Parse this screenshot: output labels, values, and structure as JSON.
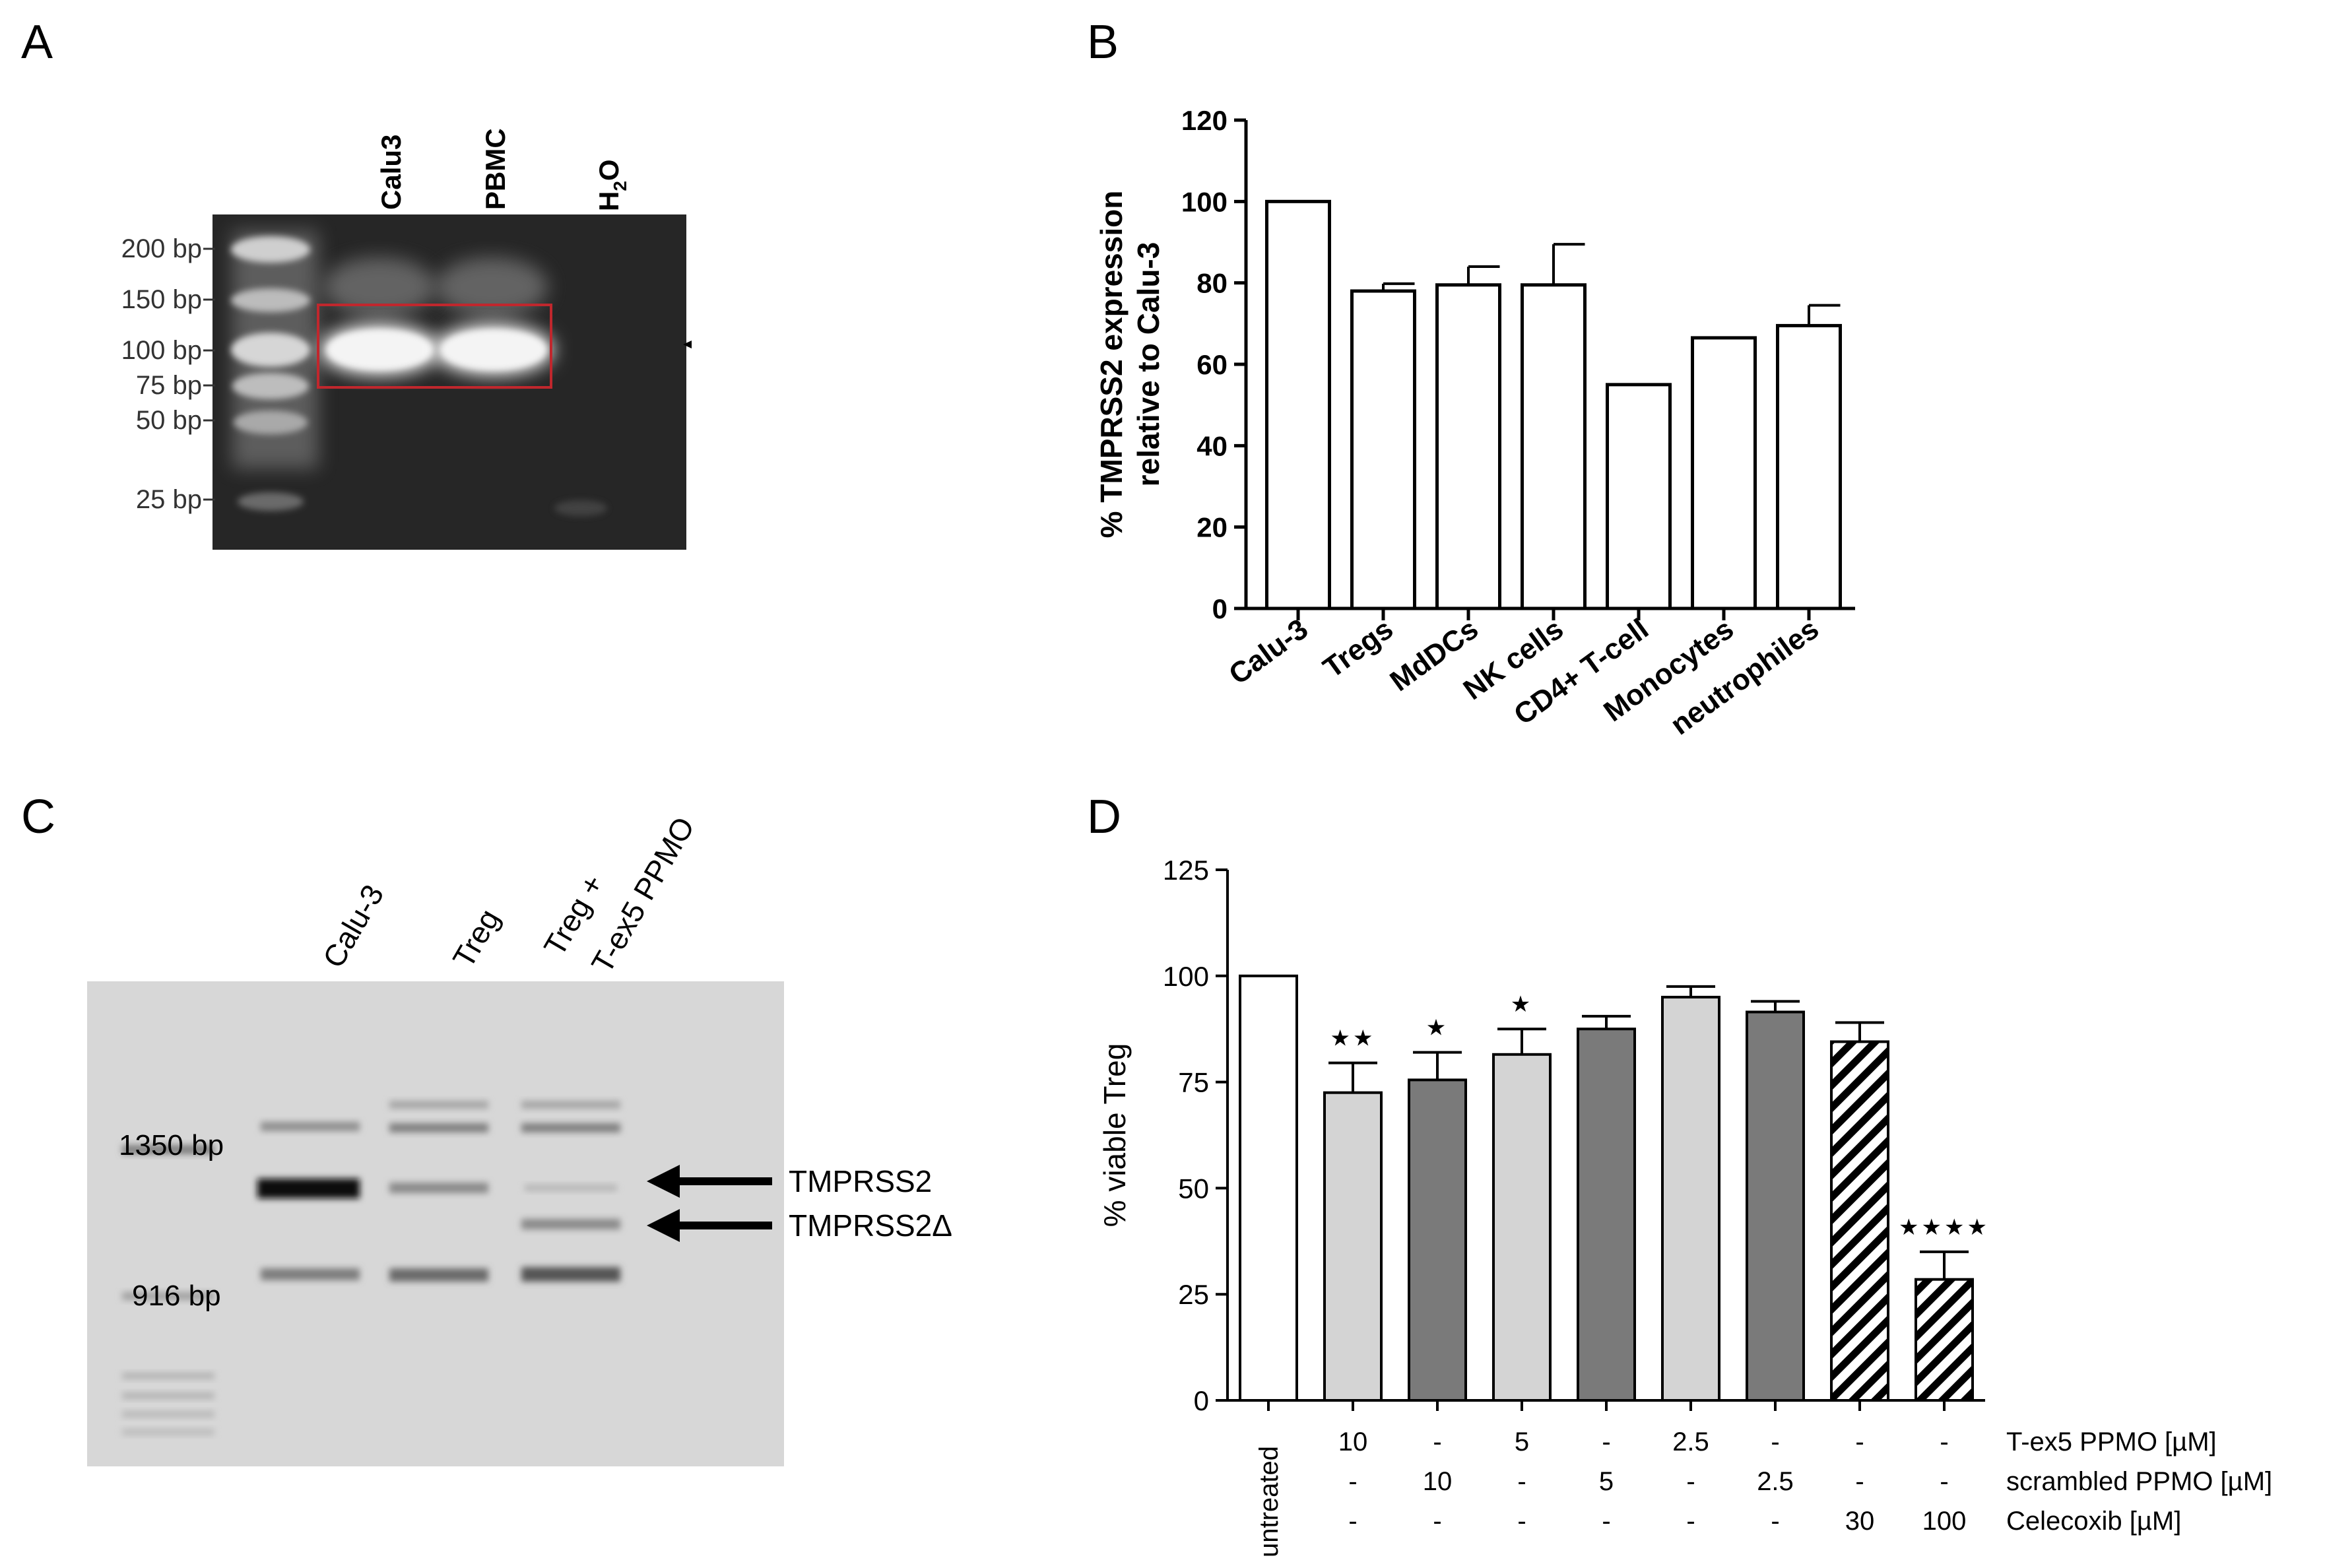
{
  "panels": {
    "A": {
      "letter": "A",
      "lanes": [
        "Calu3",
        "PBMC",
        "H",
        "2",
        "O"
      ],
      "ladder": [
        "200 bp",
        "150 bp",
        "100 bp",
        "75 bp",
        "50 bp",
        "25 bp"
      ]
    },
    "C": {
      "letter": "C",
      "lanes": [
        "Calu-3",
        "Treg",
        "Treg +",
        "T-ex5 PPMO"
      ],
      "ladder": [
        "1350 bp",
        "916 bp"
      ],
      "arrows": [
        "TMPRSS2",
        "TMPRSS2Δ"
      ]
    }
  },
  "chart_data": [
    {
      "panel": "B",
      "type": "bar",
      "title": "",
      "ylabel_line1": "% TMPRSS2 expression",
      "ylabel_line2": "relative to Calu-3",
      "ylim": [
        0,
        120
      ],
      "yticks": [
        0,
        20,
        40,
        60,
        80,
        100,
        120
      ],
      "categories": [
        "Calu-3",
        "Tregs",
        "MdDCs",
        "NK cells",
        "CD4+ T-cell",
        "Monocytes",
        "neutrophiles"
      ],
      "values": [
        100,
        78,
        79.5,
        79.5,
        55,
        66.5,
        69.5
      ],
      "errors": [
        0,
        1.8,
        4.5,
        10,
        0,
        0,
        5
      ]
    },
    {
      "panel": "D",
      "type": "bar",
      "ylabel": "% viable Treg",
      "ylim": [
        0,
        125
      ],
      "yticks": [
        0,
        25,
        50,
        75,
        100,
        125
      ],
      "categories": [
        "untreated",
        "",
        "",
        "",
        "",
        "",
        "",
        "",
        ""
      ],
      "values": [
        100,
        72.5,
        75.5,
        81.5,
        87.5,
        95,
        91.5,
        84.5,
        28.5
      ],
      "errors": [
        0,
        7,
        6.5,
        6,
        3,
        2.5,
        2.5,
        4.5,
        6.5
      ],
      "fills": [
        "white",
        "light",
        "dark",
        "light",
        "dark",
        "light",
        "dark",
        "hatch",
        "hatch"
      ],
      "significance": [
        "",
        "★★",
        "★",
        "★",
        "",
        "",
        "",
        "",
        "★★★★"
      ],
      "treatment_rows": [
        {
          "label": "T-ex5 PPMO [µM]",
          "values": [
            "10",
            "-",
            "5",
            "-",
            "2.5",
            "-",
            "-",
            "-"
          ]
        },
        {
          "label": "scrambled PPMO [µM]",
          "values": [
            "-",
            "10",
            "-",
            "5",
            "-",
            "2.5",
            "-",
            "-"
          ]
        },
        {
          "label": "Celecoxib [µM]",
          "values": [
            "-",
            "-",
            "-",
            "-",
            "-",
            "-",
            "30",
            "100"
          ]
        }
      ],
      "colors": {
        "light": "#d4d4d4",
        "dark": "#7a7a7a"
      }
    }
  ]
}
